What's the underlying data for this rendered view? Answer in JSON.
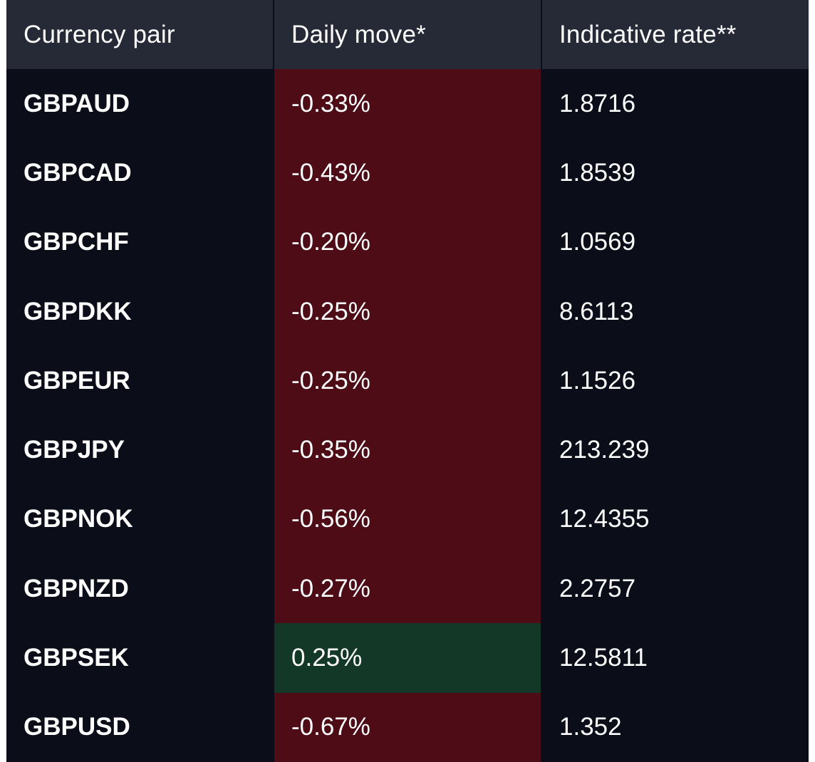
{
  "table": {
    "headers": {
      "pair": "Currency pair",
      "move": "Daily move*",
      "rate": "Indicative rate**"
    },
    "colors": {
      "background": "#0b0d18",
      "header_background": "#262a36",
      "negative_move": "#4d0c16",
      "positive_move": "#133828",
      "text": "#ffffff"
    },
    "rows": [
      {
        "pair": "GBPAUD",
        "move": "-0.33%",
        "direction": "negative",
        "rate": "1.8716"
      },
      {
        "pair": "GBPCAD",
        "move": "-0.43%",
        "direction": "negative",
        "rate": "1.8539"
      },
      {
        "pair": "GBPCHF",
        "move": "-0.20%",
        "direction": "negative",
        "rate": "1.0569"
      },
      {
        "pair": "GBPDKK",
        "move": "-0.25%",
        "direction": "negative",
        "rate": "8.6113"
      },
      {
        "pair": "GBPEUR",
        "move": "-0.25%",
        "direction": "negative",
        "rate": "1.1526"
      },
      {
        "pair": "GBPJPY",
        "move": "-0.35%",
        "direction": "negative",
        "rate": "213.239"
      },
      {
        "pair": "GBPNOK",
        "move": "-0.56%",
        "direction": "negative",
        "rate": "12.4355"
      },
      {
        "pair": "GBPNZD",
        "move": "-0.27%",
        "direction": "negative",
        "rate": "2.2757"
      },
      {
        "pair": "GBPSEK",
        "move": "0.25%",
        "direction": "positive",
        "rate": "12.5811"
      },
      {
        "pair": "GBPUSD",
        "move": "-0.67%",
        "direction": "negative",
        "rate": "1.352"
      }
    ]
  }
}
